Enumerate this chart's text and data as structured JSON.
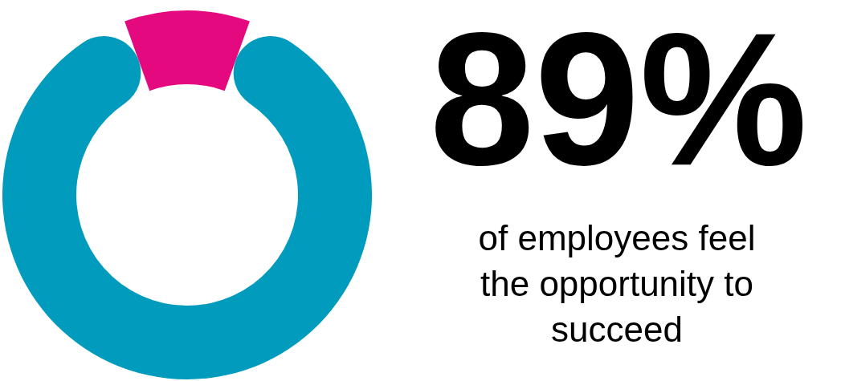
{
  "chart_data": {
    "type": "donut",
    "categories": [
      null,
      null
    ],
    "values": [
      89,
      11
    ],
    "colors": [
      "#009bbd",
      "#e5097f"
    ],
    "value_labels": [
      "89%",
      null
    ],
    "annotations": [
      "of employees feel the opportunity to succeed"
    ]
  }
}
